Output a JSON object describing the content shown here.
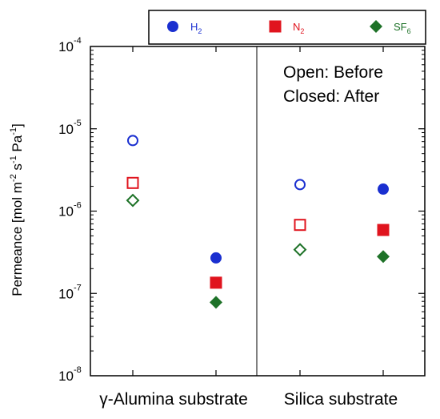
{
  "chart_data": {
    "type": "scatter",
    "ylabel_parts": [
      "Permeance [mol m",
      "-2",
      " s",
      "-1",
      " Pa",
      "-1",
      "]"
    ],
    "ylim": [
      1e-08,
      0.0001
    ],
    "yscale": "log",
    "y_ticks": [
      {
        "base": "10",
        "exp": "-8"
      },
      {
        "base": "10",
        "exp": "-7"
      },
      {
        "base": "10",
        "exp": "-6"
      },
      {
        "base": "10",
        "exp": "-5"
      },
      {
        "base": "10",
        "exp": "-4"
      }
    ],
    "categories": [
      "γ-Alumina substrate",
      "Silica substrate"
    ],
    "annotations": [
      "Open: Before",
      "Closed: After"
    ],
    "legend_position": "top-right, above plot",
    "series": [
      {
        "name_base": "H",
        "name_sub": "2",
        "color": "#1a2fd0",
        "marker": "circle",
        "points": [
          {
            "group": "γ-Alumina substrate",
            "state": "before",
            "y": 7.2e-06
          },
          {
            "group": "γ-Alumina substrate",
            "state": "after",
            "y": 2.7e-07
          },
          {
            "group": "Silica substrate",
            "state": "before",
            "y": 2.1e-06
          },
          {
            "group": "Silica substrate",
            "state": "after",
            "y": 1.85e-06
          }
        ]
      },
      {
        "name_base": "N",
        "name_sub": "2",
        "color": "#e0141e",
        "marker": "square",
        "points": [
          {
            "group": "γ-Alumina substrate",
            "state": "before",
            "y": 2.2e-06
          },
          {
            "group": "γ-Alumina substrate",
            "state": "after",
            "y": 1.35e-07
          },
          {
            "group": "Silica substrate",
            "state": "before",
            "y": 6.8e-07
          },
          {
            "group": "Silica substrate",
            "state": "after",
            "y": 5.9e-07
          }
        ]
      },
      {
        "name_base": "SF",
        "name_sub": "6",
        "color": "#1e7228",
        "marker": "diamond",
        "points": [
          {
            "group": "γ-Alumina substrate",
            "state": "before",
            "y": 1.35e-06
          },
          {
            "group": "γ-Alumina substrate",
            "state": "after",
            "y": 7.8e-08
          },
          {
            "group": "Silica substrate",
            "state": "before",
            "y": 3.4e-07
          },
          {
            "group": "Silica substrate",
            "state": "after",
            "y": 2.8e-07
          }
        ]
      }
    ]
  }
}
